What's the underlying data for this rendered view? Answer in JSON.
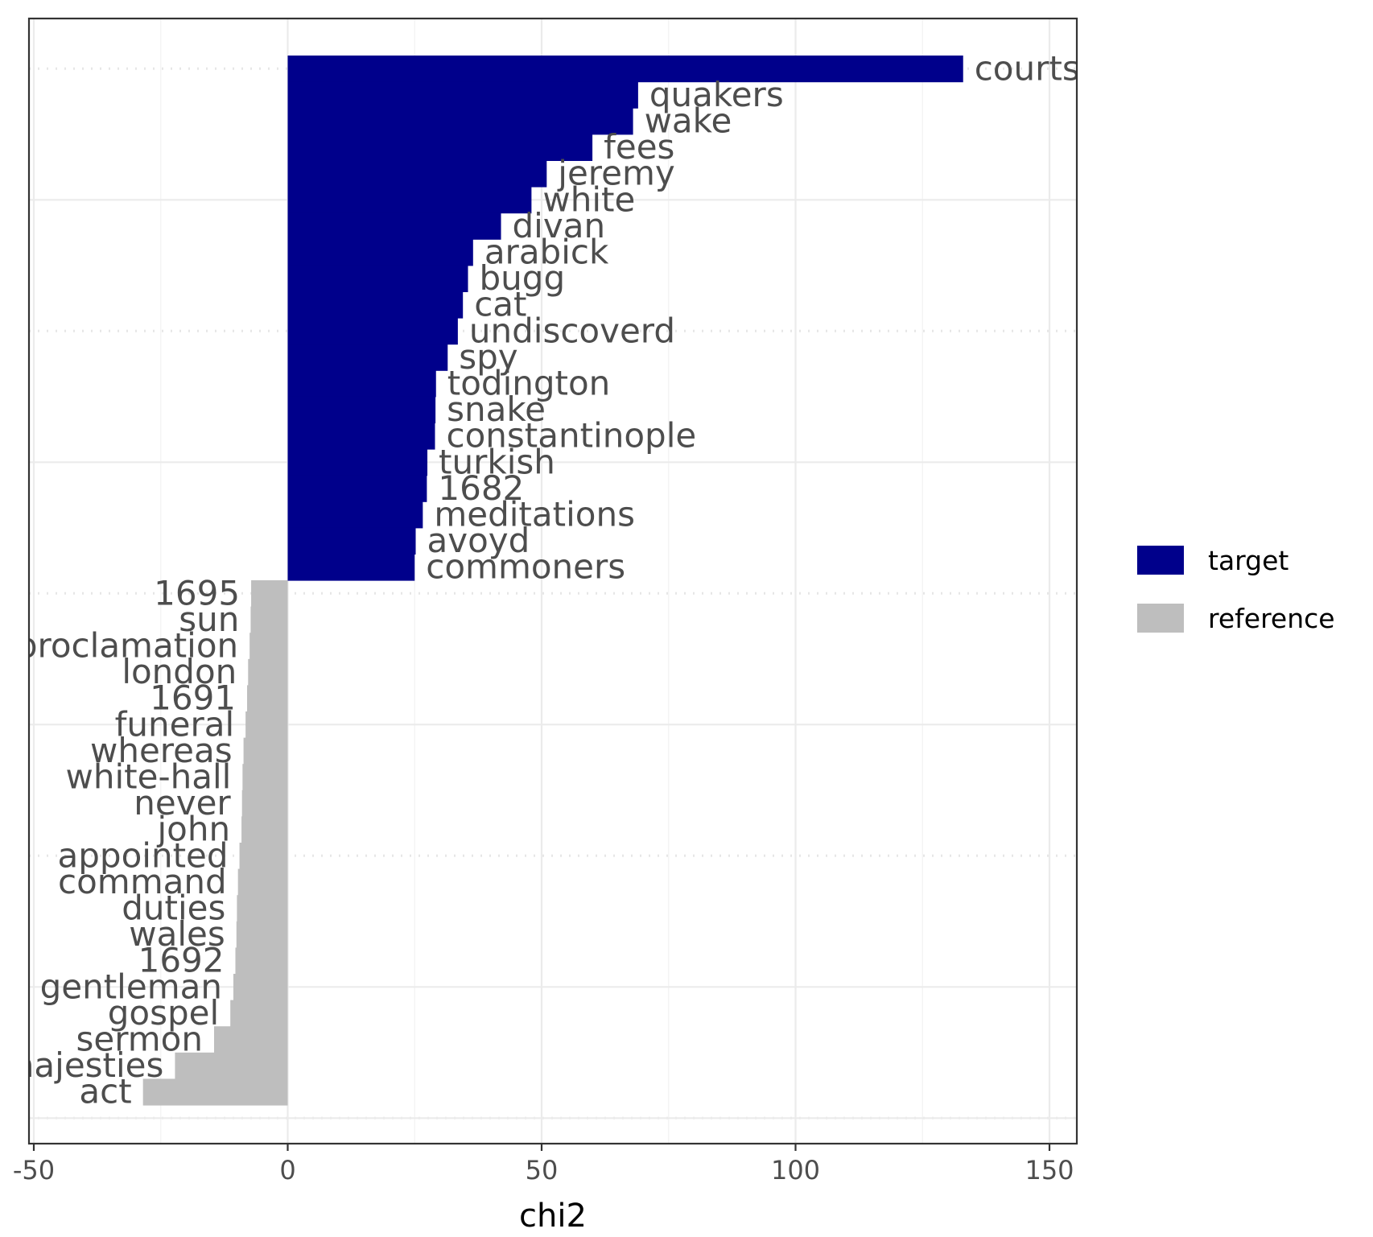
{
  "chart_data": {
    "type": "bar",
    "orientation": "horizontal",
    "xlabel": "chi2",
    "ylabel": "",
    "xlim": [
      -51,
      155
    ],
    "xticks": [
      -50,
      0,
      50,
      100,
      150
    ],
    "xtick_labels": [
      "-50",
      "0",
      "50",
      "100",
      "150"
    ],
    "grid": true,
    "legend_position": "right",
    "legend": [
      {
        "name": "target",
        "color": "#00008B"
      },
      {
        "name": "reference",
        "color": "#BEBEBE"
      }
    ],
    "bars": [
      {
        "label": "courts",
        "value": 133,
        "group": "target"
      },
      {
        "label": "quakers",
        "value": 69,
        "group": "target"
      },
      {
        "label": "wake",
        "value": 68,
        "group": "target"
      },
      {
        "label": "fees",
        "value": 60,
        "group": "target"
      },
      {
        "label": "jeremy",
        "value": 51,
        "group": "target"
      },
      {
        "label": "white",
        "value": 48,
        "group": "target"
      },
      {
        "label": "divan",
        "value": 42,
        "group": "target"
      },
      {
        "label": "arabick",
        "value": 36.5,
        "group": "target"
      },
      {
        "label": "bugg",
        "value": 35.5,
        "group": "target"
      },
      {
        "label": "cat",
        "value": 34.5,
        "group": "target"
      },
      {
        "label": "undiscoverd",
        "value": 33.5,
        "group": "target"
      },
      {
        "label": "spy",
        "value": 31.5,
        "group": "target"
      },
      {
        "label": "todington",
        "value": 29.2,
        "group": "target"
      },
      {
        "label": "snake",
        "value": 29.1,
        "group": "target"
      },
      {
        "label": "constantinople",
        "value": 29,
        "group": "target"
      },
      {
        "label": "turkish",
        "value": 27.5,
        "group": "target"
      },
      {
        "label": "1682",
        "value": 27.4,
        "group": "target"
      },
      {
        "label": "meditations",
        "value": 26.6,
        "group": "target"
      },
      {
        "label": "avoyd",
        "value": 25.2,
        "group": "target"
      },
      {
        "label": "commoners",
        "value": 25,
        "group": "target"
      },
      {
        "label": "1695",
        "value": -7.2,
        "group": "reference"
      },
      {
        "label": "sun",
        "value": -7.3,
        "group": "reference"
      },
      {
        "label": "proclamation",
        "value": -7.5,
        "group": "reference"
      },
      {
        "label": "london",
        "value": -7.8,
        "group": "reference"
      },
      {
        "label": "1691",
        "value": -8,
        "group": "reference"
      },
      {
        "label": "funeral",
        "value": -8.3,
        "group": "reference"
      },
      {
        "label": "whereas",
        "value": -8.7,
        "group": "reference"
      },
      {
        "label": "white-hall",
        "value": -8.9,
        "group": "reference"
      },
      {
        "label": "never",
        "value": -9,
        "group": "reference"
      },
      {
        "label": "john",
        "value": -9.1,
        "group": "reference"
      },
      {
        "label": "appointed",
        "value": -9.5,
        "group": "reference"
      },
      {
        "label": "command",
        "value": -9.8,
        "group": "reference"
      },
      {
        "label": "duties",
        "value": -10,
        "group": "reference"
      },
      {
        "label": "wales",
        "value": -10.1,
        "group": "reference"
      },
      {
        "label": "1692",
        "value": -10.3,
        "group": "reference"
      },
      {
        "label": "gentleman",
        "value": -10.7,
        "group": "reference"
      },
      {
        "label": "gospel",
        "value": -11.3,
        "group": "reference"
      },
      {
        "label": "sermon",
        "value": -14.5,
        "group": "reference"
      },
      {
        "label": "majesties",
        "value": -22.2,
        "group": "reference"
      },
      {
        "label": "act",
        "value": -28.5,
        "group": "reference"
      }
    ]
  }
}
